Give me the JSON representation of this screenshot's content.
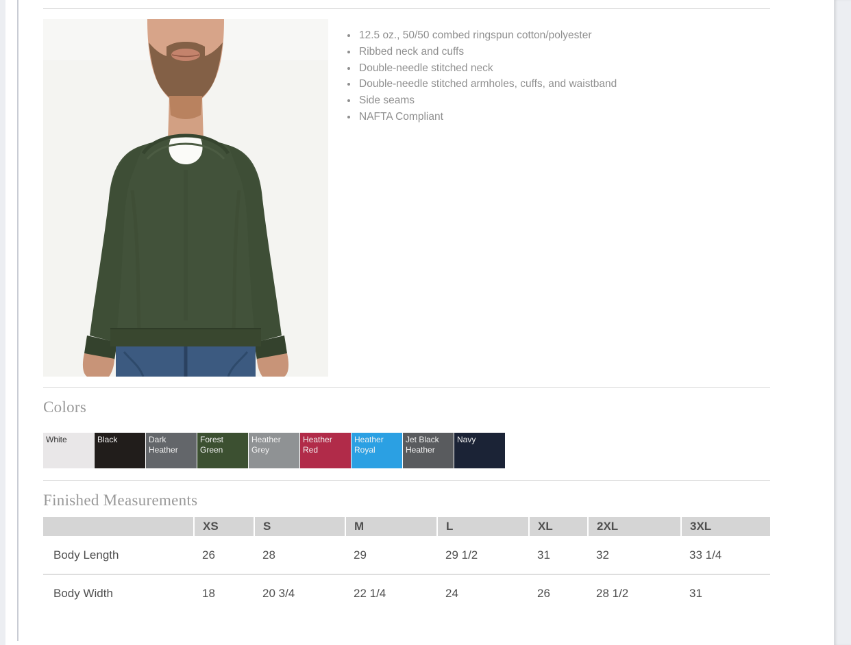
{
  "product": {
    "photo_alt": "Model wearing forest green crewneck sweatshirt over white tee with blue jeans",
    "features": [
      "12.5 oz., 50/50 combed ringspun cotton/polyester",
      "Ribbed neck and cuffs",
      "Double-needle stitched neck",
      "Double-needle stitched armholes, cuffs, and waistband",
      "Side seams",
      "NAFTA Compliant"
    ]
  },
  "colors_section": {
    "title": "Colors",
    "swatches": [
      {
        "name": "White",
        "bg": "#e9e7e8",
        "text_color": "#333333"
      },
      {
        "name": "Black",
        "bg": "#211d1b",
        "text_color": "#f2f2f2"
      },
      {
        "name": "Dark Heather",
        "bg": "#63666a",
        "text_color": "#f2f2f2"
      },
      {
        "name": "Forest Green",
        "bg": "#3c5031",
        "text_color": "#f2f2f2"
      },
      {
        "name": "Heather Grey",
        "bg": "#8f9294",
        "text_color": "#f2f2f2"
      },
      {
        "name": "Heather Red",
        "bg": "#b12b49",
        "text_color": "#f2f2f2"
      },
      {
        "name": "Heather Royal",
        "bg": "#2ba0e3",
        "text_color": "#f2f2f2"
      },
      {
        "name": "Jet Black Heather",
        "bg": "#595b5e",
        "text_color": "#f2f2f2"
      },
      {
        "name": "Navy",
        "bg": "#1b2336",
        "text_color": "#f2f2f2"
      }
    ]
  },
  "measurements": {
    "title": "Finished Measurements",
    "columns": [
      "XS",
      "S",
      "M",
      "L",
      "XL",
      "2XL",
      "3XL"
    ],
    "rows": [
      {
        "label": "Body Length",
        "values": [
          "26",
          "28",
          "29",
          "29 1/2",
          "31",
          "32",
          "33 1/4"
        ]
      },
      {
        "label": "Body Width",
        "values": [
          "18",
          "20 3/4",
          "22 1/4",
          "24",
          "26",
          "28 1/2",
          "31"
        ]
      }
    ]
  }
}
